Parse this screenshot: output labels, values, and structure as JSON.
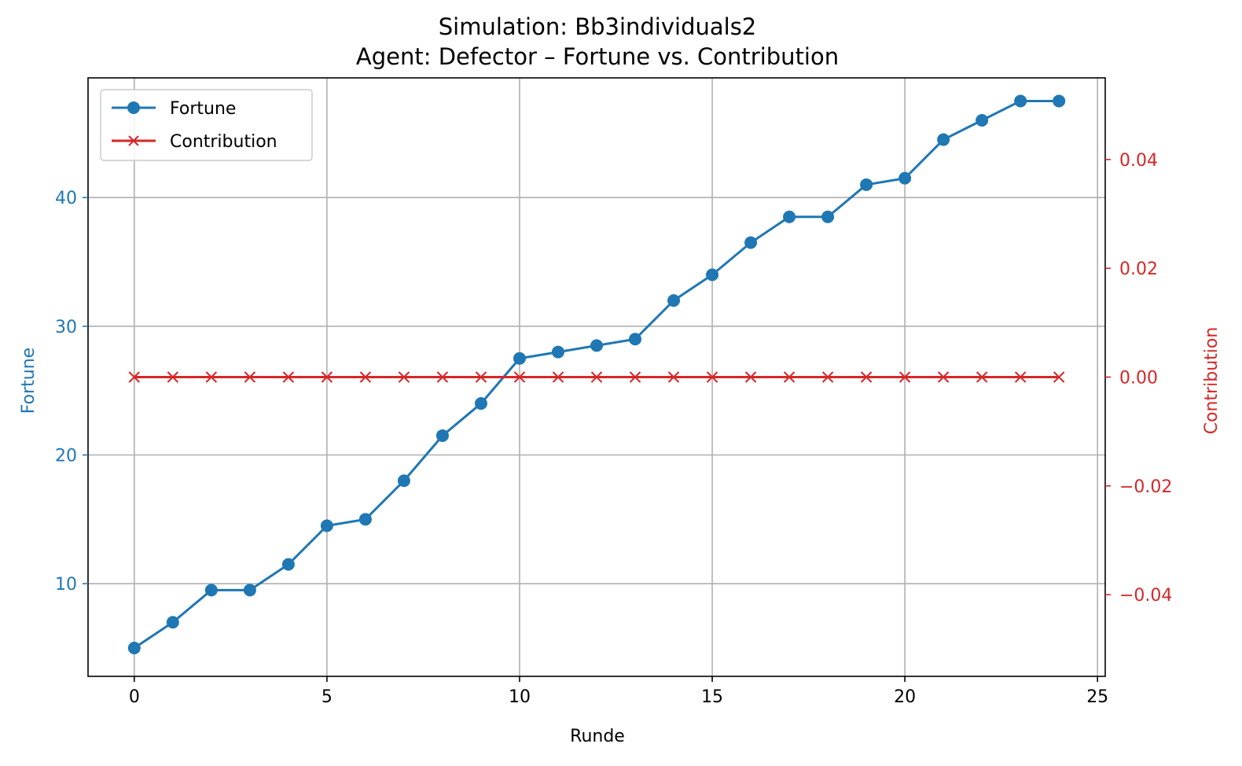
{
  "chart_data": {
    "type": "line",
    "title": "Simulation: Bb3individuals2",
    "subtitle": "Agent: Defector – Fortune vs. Contribution",
    "xlabel": "Runde",
    "ylabel": "Fortune",
    "y2label": "Contribution",
    "xlim": [
      -1.2,
      25.2
    ],
    "ylim": [
      2.8,
      49.3
    ],
    "y2lim": [
      -0.055,
      0.055
    ],
    "xticks": [
      0,
      5,
      10,
      15,
      20,
      25
    ],
    "yticks": [
      10,
      20,
      30,
      40
    ],
    "y2ticks": [
      -0.04,
      -0.02,
      0.0,
      0.02,
      0.04
    ],
    "y2ticklabels": [
      "−0.04",
      "−0.02",
      "0.00",
      "0.02",
      "0.04"
    ],
    "grid": true,
    "legend_position": "upper-left",
    "colors": {
      "fortune": "#1f77b4",
      "contribution": "#d62728"
    },
    "x": [
      0,
      1,
      2,
      3,
      4,
      5,
      6,
      7,
      8,
      9,
      10,
      11,
      12,
      13,
      14,
      15,
      16,
      17,
      18,
      19,
      20,
      21,
      22,
      23,
      24
    ],
    "series": [
      {
        "name": "Fortune",
        "axis": "left",
        "marker": "circle",
        "values": [
          5,
          7,
          9.5,
          9.5,
          11.5,
          14.5,
          15,
          18,
          21.5,
          24,
          27.5,
          28,
          28.5,
          29,
          32,
          34,
          36.5,
          38.5,
          38.5,
          41,
          41.5,
          44.5,
          46,
          47.5,
          47.5
        ]
      },
      {
        "name": "Contribution",
        "axis": "right",
        "marker": "x",
        "values": [
          0,
          0,
          0,
          0,
          0,
          0,
          0,
          0,
          0,
          0,
          0,
          0,
          0,
          0,
          0,
          0,
          0,
          0,
          0,
          0,
          0,
          0,
          0,
          0,
          0
        ]
      }
    ]
  }
}
